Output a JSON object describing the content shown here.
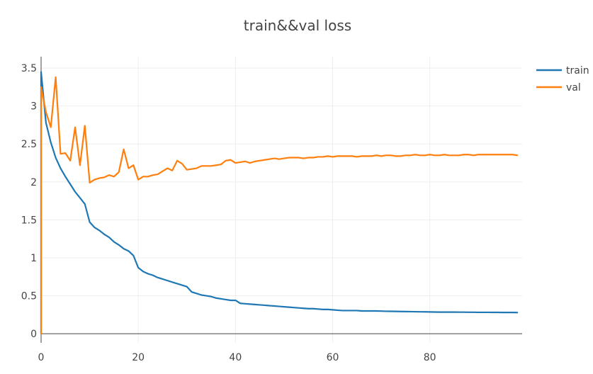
{
  "chart_data": {
    "type": "line",
    "title": "train&&val loss",
    "xlabel": "",
    "ylabel": "",
    "xlim": [
      0,
      99
    ],
    "ylim": [
      -0.12,
      3.65
    ],
    "x_ticks": [
      0,
      20,
      40,
      60,
      80
    ],
    "y_ticks": [
      0,
      0.5,
      1,
      1.5,
      2,
      2.5,
      3,
      3.5
    ],
    "grid": true,
    "legend_position": "top-right",
    "colors": {
      "train": "#1f77b4",
      "val": "#ff7f0e",
      "grid": "#eeeeee",
      "axis": "#444444",
      "text": "#444444"
    },
    "series": [
      {
        "name": "train",
        "x": [
          0,
          1,
          2,
          3,
          4,
          5,
          6,
          7,
          8,
          9,
          10,
          11,
          12,
          13,
          14,
          15,
          16,
          17,
          18,
          19,
          20,
          21,
          22,
          23,
          24,
          25,
          26,
          27,
          28,
          29,
          30,
          31,
          32,
          33,
          34,
          35,
          36,
          37,
          38,
          39,
          40,
          41,
          42,
          43,
          44,
          45,
          46,
          47,
          48,
          49,
          50,
          51,
          52,
          53,
          54,
          55,
          56,
          57,
          58,
          59,
          60,
          61,
          62,
          63,
          64,
          65,
          66,
          67,
          68,
          69,
          70,
          71,
          72,
          73,
          74,
          75,
          76,
          77,
          78,
          79,
          80,
          81,
          82,
          83,
          84,
          85,
          86,
          87,
          88,
          89,
          90,
          91,
          92,
          93,
          94,
          95,
          96,
          97,
          98
        ],
        "y": [
          3.45,
          2.78,
          2.52,
          2.32,
          2.18,
          2.07,
          1.97,
          1.87,
          1.79,
          1.71,
          1.47,
          1.4,
          1.36,
          1.31,
          1.27,
          1.21,
          1.17,
          1.12,
          1.09,
          1.03,
          0.87,
          0.82,
          0.79,
          0.77,
          0.74,
          0.72,
          0.7,
          0.68,
          0.66,
          0.64,
          0.62,
          0.55,
          0.53,
          0.51,
          0.5,
          0.49,
          0.47,
          0.46,
          0.45,
          0.44,
          0.44,
          0.4,
          0.395,
          0.39,
          0.385,
          0.38,
          0.375,
          0.37,
          0.365,
          0.36,
          0.355,
          0.35,
          0.345,
          0.34,
          0.335,
          0.33,
          0.33,
          0.325,
          0.32,
          0.32,
          0.315,
          0.31,
          0.305,
          0.305,
          0.305,
          0.305,
          0.3,
          0.3,
          0.3,
          0.3,
          0.298,
          0.296,
          0.295,
          0.294,
          0.293,
          0.292,
          0.291,
          0.29,
          0.289,
          0.288,
          0.287,
          0.286,
          0.285,
          0.285,
          0.285,
          0.285,
          0.284,
          0.284,
          0.283,
          0.283,
          0.282,
          0.282,
          0.282,
          0.281,
          0.281,
          0.28,
          0.28,
          0.28,
          0.279
        ]
      },
      {
        "name": "val",
        "x": [
          0,
          1,
          2,
          3,
          4,
          5,
          6,
          7,
          8,
          9,
          10,
          11,
          12,
          13,
          14,
          15,
          16,
          17,
          18,
          19,
          20,
          21,
          22,
          23,
          24,
          25,
          26,
          27,
          28,
          29,
          30,
          31,
          32,
          33,
          34,
          35,
          36,
          37,
          38,
          39,
          40,
          41,
          42,
          43,
          44,
          45,
          46,
          47,
          48,
          49,
          50,
          51,
          52,
          53,
          54,
          55,
          56,
          57,
          58,
          59,
          60,
          61,
          62,
          63,
          64,
          65,
          66,
          67,
          68,
          69,
          70,
          71,
          72,
          73,
          74,
          75,
          76,
          77,
          78,
          79,
          80,
          81,
          82,
          83,
          84,
          85,
          86,
          87,
          88,
          89,
          90,
          91,
          92,
          93,
          94,
          95,
          96,
          97,
          98
        ],
        "y": [
          3.25,
          2.92,
          2.72,
          3.38,
          2.37,
          2.38,
          2.28,
          2.72,
          2.22,
          2.74,
          1.99,
          2.03,
          2.05,
          2.06,
          2.09,
          2.07,
          2.13,
          2.43,
          2.18,
          2.22,
          2.03,
          2.07,
          2.07,
          2.09,
          2.1,
          2.14,
          2.18,
          2.15,
          2.28,
          2.24,
          2.16,
          2.17,
          2.18,
          2.21,
          2.21,
          2.21,
          2.22,
          2.23,
          2.28,
          2.29,
          2.25,
          2.26,
          2.27,
          2.25,
          2.27,
          2.28,
          2.29,
          2.3,
          2.31,
          2.3,
          2.31,
          2.32,
          2.32,
          2.32,
          2.31,
          2.32,
          2.32,
          2.33,
          2.33,
          2.34,
          2.33,
          2.34,
          2.34,
          2.34,
          2.34,
          2.33,
          2.34,
          2.34,
          2.34,
          2.35,
          2.34,
          2.35,
          2.35,
          2.34,
          2.34,
          2.35,
          2.35,
          2.36,
          2.35,
          2.35,
          2.36,
          2.35,
          2.35,
          2.36,
          2.35,
          2.35,
          2.35,
          2.36,
          2.36,
          2.35,
          2.36,
          2.36,
          2.36,
          2.36,
          2.36,
          2.36,
          2.36,
          2.36,
          2.35
        ]
      }
    ]
  }
}
